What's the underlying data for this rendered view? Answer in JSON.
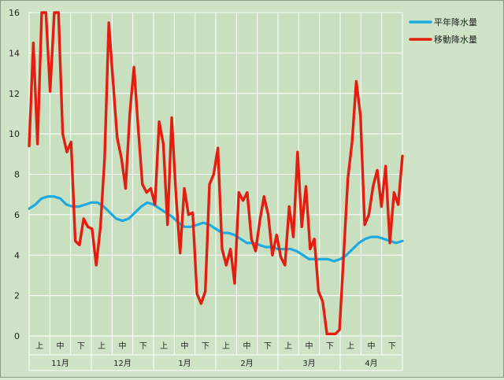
{
  "chart_data": {
    "type": "line",
    "title": "",
    "xlabel": "",
    "ylabel": "",
    "ylim": [
      0,
      16
    ],
    "y_ticks": [
      "0",
      "2",
      "4",
      "6",
      "8",
      "10",
      "12",
      "14",
      "16"
    ],
    "grid": true,
    "legend_position": "top-right",
    "months": [
      "11月",
      "12月",
      "1月",
      "2月",
      "3月",
      "4月"
    ],
    "decades": [
      "上",
      "中",
      "下"
    ],
    "series": [
      {
        "name": "平年降水量",
        "color": "#1ea9e1",
        "values": [
          6.3,
          6.5,
          6.8,
          6.9,
          6.9,
          6.8,
          6.5,
          6.4,
          6.4,
          6.5,
          6.6,
          6.6,
          6.4,
          6.1,
          5.8,
          5.7,
          5.8,
          6.1,
          6.4,
          6.6,
          6.5,
          6.3,
          6.1,
          5.9,
          5.6,
          5.4,
          5.4,
          5.5,
          5.6,
          5.5,
          5.3,
          5.1,
          5.1,
          5.0,
          4.8,
          4.6,
          4.6,
          4.5,
          4.4,
          4.4,
          4.3,
          4.3,
          4.3,
          4.2,
          4.0,
          3.8,
          3.8,
          3.8,
          3.8,
          3.7,
          3.8,
          4.0,
          4.3,
          4.6,
          4.8,
          4.9,
          4.9,
          4.8,
          4.7,
          4.6,
          4.7
        ]
      },
      {
        "name": "移動降水量",
        "color": "#e31e10",
        "values": [
          9.4,
          14.5,
          9.5,
          16,
          16,
          12.1,
          16,
          16,
          10,
          9.1,
          9.6,
          4.7,
          4.5,
          5.8,
          5.4,
          5.3,
          3.5,
          5.4,
          8.8,
          15.5,
          12.6,
          9.8,
          8.8,
          7.3,
          11.0,
          13.3,
          10.3,
          7.5,
          7.1,
          7.3,
          6.5,
          10.6,
          9.5,
          5.5,
          10.8,
          7.0,
          4.1,
          7.3,
          6.0,
          6.1,
          2.1,
          1.6,
          2.2,
          7.5,
          8.0,
          9.3,
          4.3,
          3.5,
          4.3,
          2.6,
          7.1,
          6.7,
          7.1,
          4.8,
          4.2,
          5.7,
          6.9,
          6.0,
          4.0,
          5.0,
          3.9,
          3.5,
          6.4,
          4.9,
          9.1,
          5.4,
          7.4,
          4.3,
          4.8,
          2.2,
          1.7,
          0.1,
          0.1,
          0.1,
          0.3,
          4.0,
          7.8,
          9.6,
          12.6,
          10.9,
          5.5,
          6.0,
          7.4,
          8.2,
          6.4,
          8.4,
          4.6,
          7.1,
          6.5,
          8.9
        ]
      }
    ]
  }
}
